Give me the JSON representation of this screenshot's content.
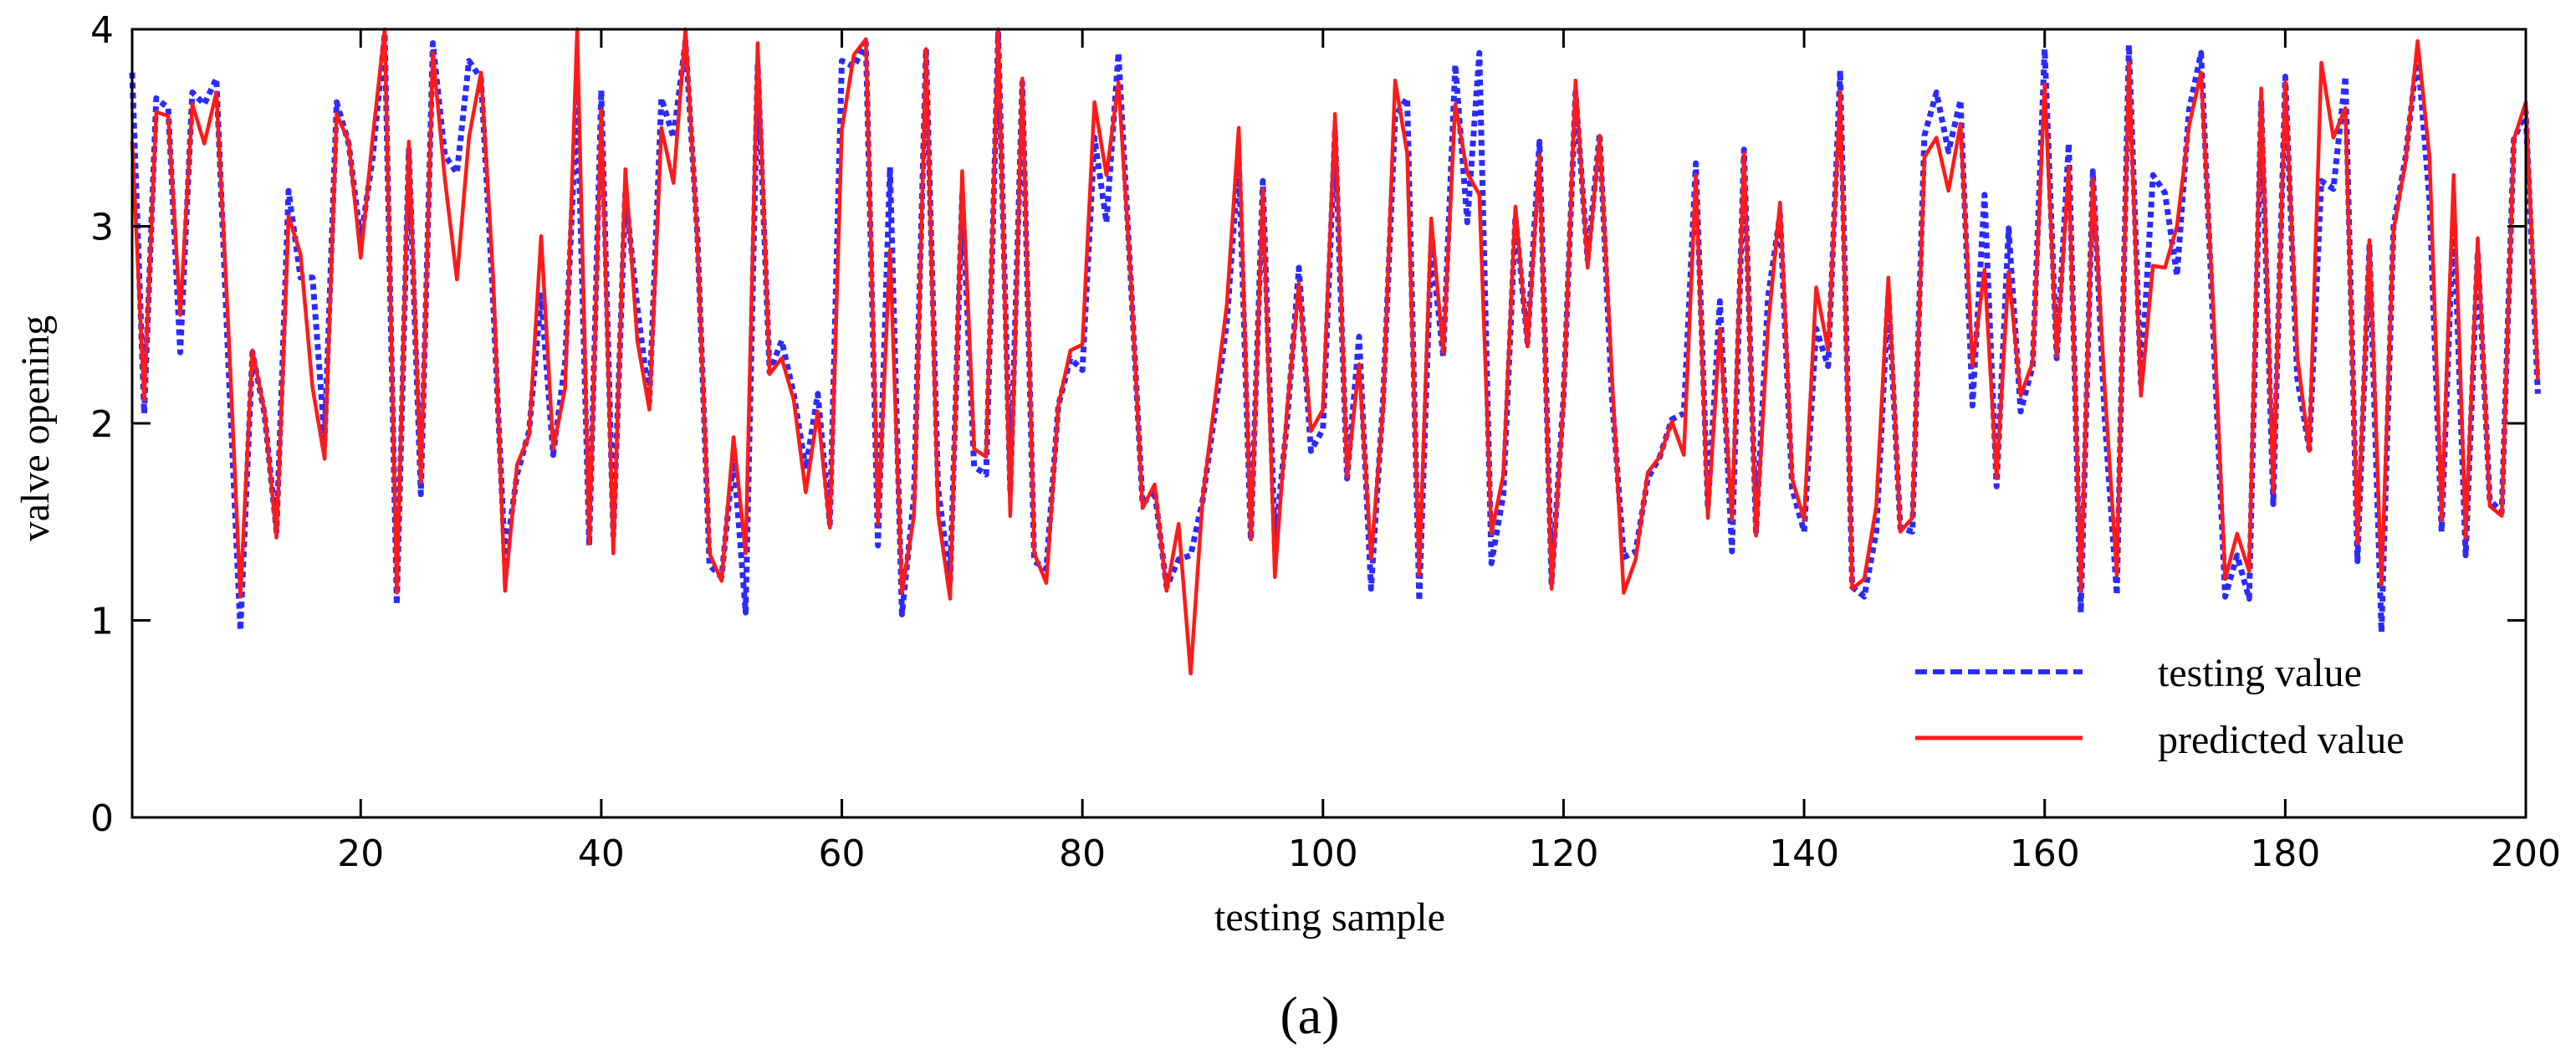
{
  "chart_data": {
    "type": "line",
    "title": "",
    "xlabel": "testing sample",
    "ylabel": "valve opening",
    "xlim": [
      1,
      200
    ],
    "ylim": [
      0,
      4
    ],
    "xticks": [
      20,
      40,
      60,
      80,
      100,
      120,
      140,
      160,
      180,
      200
    ],
    "yticks": [
      0,
      1,
      2,
      3,
      4
    ],
    "caption": "(a)",
    "legend_position": "bottom-right",
    "series": [
      {
        "name": "testing value",
        "style": "dotted",
        "color": "#2b2bff",
        "values": [
          3.78,
          2.05,
          3.65,
          3.6,
          2.36,
          3.68,
          3.62,
          3.75,
          2.3,
          0.95,
          2.36,
          2.05,
          1.45,
          3.18,
          2.74,
          2.74,
          1.92,
          3.63,
          3.42,
          2.93,
          3.35,
          3.98,
          1.08,
          3.39,
          1.64,
          3.93,
          3.36,
          3.27,
          3.84,
          3.75,
          2.63,
          1.3,
          1.74,
          1.96,
          2.65,
          1.84,
          2.31,
          3.66,
          1.38,
          3.69,
          1.43,
          3.17,
          2.59,
          2.11,
          3.65,
          3.45,
          3.94,
          2.95,
          1.28,
          1.22,
          1.83,
          1.04,
          3.82,
          2.26,
          2.42,
          2.15,
          1.77,
          2.15,
          1.49,
          3.84,
          3.81,
          3.93,
          1.38,
          3.3,
          1.03,
          1.63,
          3.9,
          1.67,
          1.2,
          3.16,
          1.78,
          1.74,
          3.98,
          1.66,
          3.73,
          1.3,
          1.26,
          2.09,
          2.33,
          2.27,
          3.45,
          3.02,
          3.88,
          2.75,
          1.59,
          1.66,
          1.17,
          1.31,
          1.33,
          1.61,
          2.05,
          2.51,
          3.35,
          1.41,
          3.23,
          1.39,
          2.0,
          2.79,
          1.86,
          1.97,
          3.48,
          1.72,
          2.44,
          1.16,
          2.12,
          3.56,
          3.65,
          1.1,
          2.91,
          2.34,
          3.82,
          3.02,
          3.88,
          1.29,
          1.64,
          3.05,
          2.41,
          3.43,
          1.19,
          2.13,
          3.68,
          2.83,
          3.47,
          2.15,
          1.32,
          1.35,
          1.72,
          1.83,
          2.02,
          2.05,
          3.32,
          1.57,
          2.62,
          1.35,
          3.39,
          1.45,
          2.64,
          3.06,
          1.67,
          1.45,
          2.48,
          2.29,
          3.79,
          1.17,
          1.12,
          1.45,
          2.66,
          1.47,
          1.45,
          3.46,
          3.68,
          3.38,
          3.64,
          2.09,
          3.16,
          1.68,
          2.99,
          2.06,
          2.29,
          3.9,
          2.33,
          3.42,
          1.04,
          3.28,
          2.02,
          1.13,
          3.92,
          2.2,
          3.26,
          3.17,
          2.75,
          3.59,
          3.88,
          2.49,
          1.12,
          1.33,
          1.11,
          3.63,
          1.59,
          3.76,
          2.23,
          1.87,
          3.23,
          3.19,
          3.76,
          1.3,
          2.9,
          0.94,
          3.0,
          3.35,
          3.88,
          3.13,
          1.45,
          3.07,
          1.33,
          2.87,
          1.61,
          1.55,
          3.44,
          3.58,
          2.15
        ]
      },
      {
        "name": "predicted value",
        "style": "solid",
        "color": "#ff1a1a",
        "values": [
          3.43,
          2.12,
          3.58,
          3.56,
          2.55,
          3.62,
          3.42,
          3.68,
          2.48,
          1.12,
          2.37,
          2.06,
          1.42,
          3.05,
          2.86,
          2.18,
          1.82,
          3.57,
          3.43,
          2.84,
          3.45,
          4.0,
          1.14,
          3.43,
          1.7,
          3.88,
          3.24,
          2.73,
          3.45,
          3.78,
          2.75,
          1.15,
          1.79,
          1.94,
          2.95,
          1.87,
          2.18,
          4.0,
          1.39,
          3.59,
          1.34,
          3.29,
          2.42,
          2.07,
          3.5,
          3.22,
          4.0,
          2.92,
          1.34,
          1.2,
          1.93,
          1.34,
          3.93,
          2.25,
          2.33,
          2.12,
          1.65,
          2.06,
          1.47,
          3.49,
          3.87,
          3.95,
          1.49,
          2.88,
          1.14,
          1.53,
          3.9,
          1.54,
          1.11,
          3.28,
          1.87,
          1.83,
          4.0,
          1.53,
          3.75,
          1.34,
          1.19,
          2.09,
          2.37,
          2.4,
          3.63,
          3.26,
          3.73,
          2.76,
          1.57,
          1.69,
          1.15,
          1.49,
          0.73,
          1.62,
          2.11,
          2.6,
          3.5,
          1.41,
          3.19,
          1.22,
          2.06,
          2.71,
          1.96,
          2.07,
          3.57,
          1.73,
          2.3,
          1.31,
          2.08,
          3.74,
          3.37,
          1.23,
          3.04,
          2.36,
          3.62,
          3.27,
          3.16,
          1.44,
          1.74,
          3.1,
          2.39,
          3.36,
          1.16,
          2.12,
          3.74,
          2.79,
          3.46,
          2.26,
          1.14,
          1.31,
          1.75,
          1.83,
          2.01,
          1.84,
          3.26,
          1.52,
          2.48,
          1.51,
          3.37,
          1.43,
          2.49,
          3.12,
          1.72,
          1.51,
          2.69,
          2.37,
          3.68,
          1.16,
          1.21,
          1.58,
          2.74,
          1.45,
          1.52,
          3.35,
          3.45,
          3.18,
          3.52,
          2.29,
          2.78,
          1.72,
          2.77,
          2.14,
          2.31,
          3.72,
          2.34,
          3.3,
          1.15,
          3.24,
          2.17,
          1.23,
          3.83,
          2.14,
          2.8,
          2.79,
          3.0,
          3.51,
          3.78,
          2.59,
          1.21,
          1.44,
          1.25,
          3.7,
          1.65,
          3.73,
          2.34,
          1.86,
          3.83,
          3.45,
          3.6,
          1.39,
          2.93,
          1.18,
          2.98,
          3.33,
          3.94,
          3.35,
          1.51,
          3.26,
          1.42,
          2.94,
          1.58,
          1.53,
          3.44,
          3.63,
          2.22
        ]
      }
    ]
  }
}
